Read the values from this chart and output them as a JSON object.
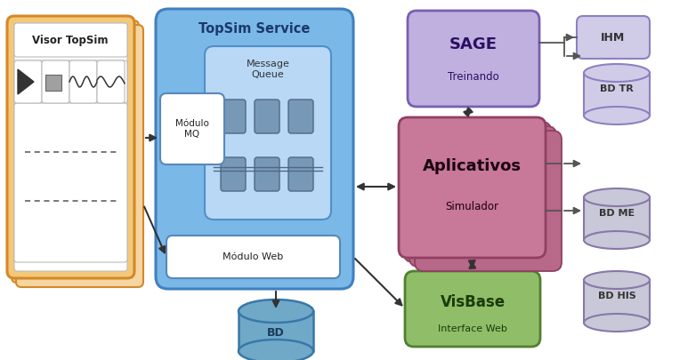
{
  "bg_color": "#ffffff",
  "visor_outer_color": "#f5c878",
  "visor_shadow_color": "#f5d5a0",
  "visor_border_color": "#d4882a",
  "visor_label": "Visor TopSim",
  "topsim_color": "#7ab8e8",
  "topsim_border": "#4080c0",
  "topsim_label": "TopSim Service",
  "mq_inner_color": "#b8d8f5",
  "mq_border": "#5090c8",
  "mq_label": "Message\nQueue",
  "modulo_mq_label": "Módulo\nMQ",
  "modulo_web_label": "Módulo Web",
  "sage_color": "#c0b0e0",
  "sage_border": "#7860b0",
  "sage_label": "SAGE",
  "sage_sub": "Treinando",
  "aplic_color": "#c87898",
  "aplic_shadow": "#b86888",
  "aplic_border": "#904060",
  "aplic_label": "Aplicativos",
  "aplic_sub": "Simulador",
  "visbase_color": "#90be68",
  "visbase_border": "#508030",
  "visbase_label": "VisBase",
  "visbase_sub": "Interface Web",
  "ihm_color": "#d0cce8",
  "ihm_border": "#9080c0",
  "bd_tr_color": "#d0cce8",
  "bd_tr_border": "#9080c0",
  "bd_me_color": "#c8c8d8",
  "bd_me_border": "#8878a8",
  "bd_his_color": "#c8c8d8",
  "bd_his_border": "#8878a8",
  "bd_color": "#70a8c8",
  "bd_border": "#3878a8",
  "arrow_color": "#333333",
  "line_color": "#555555"
}
